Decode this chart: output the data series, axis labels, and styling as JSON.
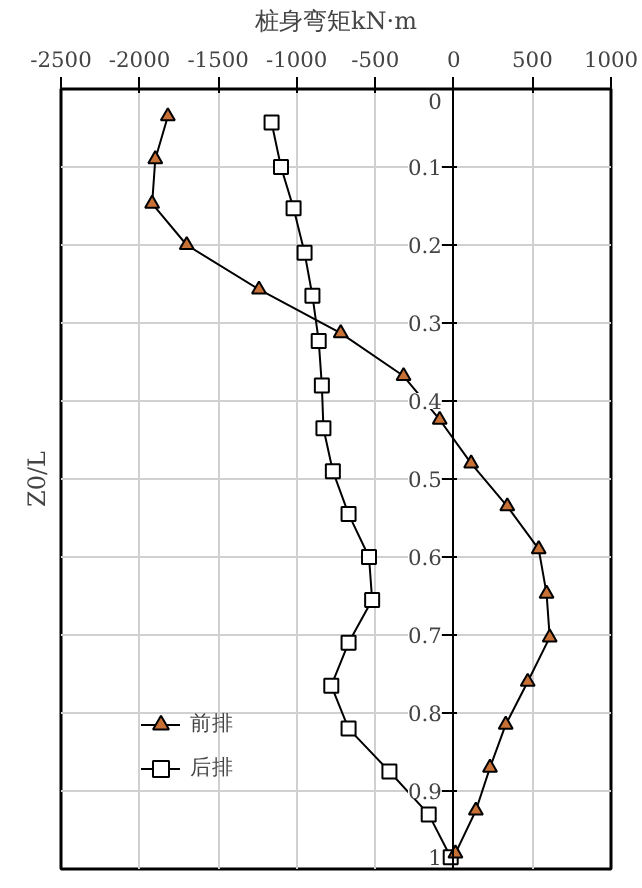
{
  "chart_data": {
    "type": "line",
    "title": "桩身弯矩kN·m",
    "ylabel": "Z0/L",
    "xlim": [
      -2500,
      1000
    ],
    "xticks": [
      -2500,
      -2000,
      -1500,
      -1000,
      -500,
      0,
      500,
      1000
    ],
    "ylim": [
      1,
      0
    ],
    "yticks": [
      0,
      0.1,
      0.2,
      0.3,
      0.4,
      0.5,
      0.6,
      0.7,
      0.8,
      0.9,
      1
    ],
    "grid": true,
    "legend": "bottom left",
    "series": [
      {
        "name": "前排",
        "color": "#c87137",
        "marker": "triangle",
        "x": [
          -1820,
          -1900,
          -1920,
          -1700,
          -1240,
          -720,
          -320,
          -90,
          110,
          340,
          540,
          590,
          610,
          470,
          330,
          230,
          140,
          10
        ],
        "values": [
          0.035,
          0.09,
          0.147,
          0.2,
          0.257,
          0.313,
          0.368,
          0.424,
          0.48,
          0.535,
          0.59,
          0.647,
          0.703,
          0.76,
          0.815,
          0.87,
          0.925,
          0.98
        ]
      },
      {
        "name": "后排",
        "color": "#ffffff",
        "marker": "square",
        "x": [
          -1160,
          -1100,
          -1020,
          -950,
          -900,
          -860,
          -840,
          -830,
          -770,
          -670,
          -540,
          -520,
          -670,
          -780,
          -670,
          -410,
          -160,
          -20
        ],
        "values": [
          0.043,
          0.1,
          0.153,
          0.21,
          0.265,
          0.323,
          0.38,
          0.435,
          0.49,
          0.545,
          0.6,
          0.655,
          0.71,
          0.765,
          0.82,
          0.875,
          0.93,
          0.985
        ]
      }
    ]
  }
}
